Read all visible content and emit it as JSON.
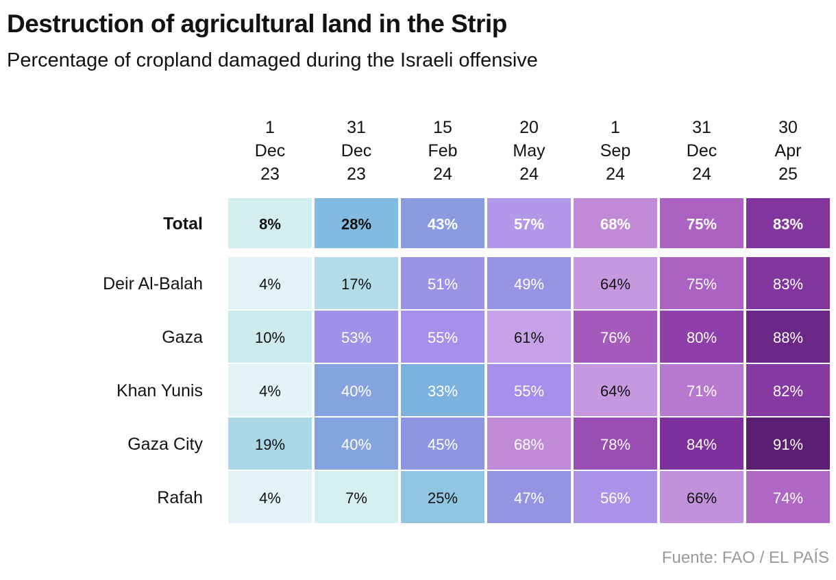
{
  "title": "Destruction of agricultural land in the Strip",
  "subtitle": "Percentage of cropland damaged during the Israeli offensive",
  "source": "Fuente: FAO / EL PAÍS",
  "chart_data": {
    "type": "heatmap",
    "title": "Destruction of agricultural land in the Strip",
    "subtitle": "Percentage of cropland damaged during the Israeli offensive",
    "columns": [
      [
        "1",
        "Dec",
        "23"
      ],
      [
        "31",
        "Dec",
        "23"
      ],
      [
        "15",
        "Feb",
        "24"
      ],
      [
        "20",
        "May",
        "24"
      ],
      [
        "1",
        "Sep",
        "24"
      ],
      [
        "31",
        "Dec",
        "24"
      ],
      [
        "30",
        "Apr",
        "25"
      ]
    ],
    "rows": [
      {
        "label": "Total",
        "bold": true,
        "values": [
          8,
          28,
          43,
          57,
          68,
          75,
          83
        ]
      },
      {
        "label": "Deir Al-Balah",
        "bold": false,
        "values": [
          4,
          17,
          51,
          49,
          64,
          75,
          83
        ]
      },
      {
        "label": "Gaza",
        "bold": false,
        "values": [
          10,
          53,
          55,
          61,
          76,
          80,
          88
        ]
      },
      {
        "label": "Khan Yunis",
        "bold": false,
        "values": [
          4,
          40,
          33,
          55,
          64,
          71,
          82
        ]
      },
      {
        "label": "Gaza City",
        "bold": false,
        "values": [
          19,
          40,
          45,
          68,
          78,
          84,
          91
        ]
      },
      {
        "label": "Rafah",
        "bold": false,
        "values": [
          4,
          7,
          25,
          47,
          56,
          66,
          74
        ]
      }
    ],
    "unit": "%",
    "value_range": [
      0,
      100
    ],
    "color_scale": [
      [
        0,
        "#f0f9fb"
      ],
      [
        10,
        "#cbebee"
      ],
      [
        20,
        "#a6d6e6"
      ],
      [
        28,
        "#82bbe1"
      ],
      [
        35,
        "#7ab0dd"
      ],
      [
        45,
        "#8f96e1"
      ],
      [
        55,
        "#a48fea"
      ],
      [
        60,
        "#c9a5ea"
      ],
      [
        68,
        "#c08ad6"
      ],
      [
        75,
        "#ab62c0"
      ],
      [
        80,
        "#8e3faa"
      ],
      [
        85,
        "#7a2e98"
      ],
      [
        91,
        "#5a1f73"
      ]
    ]
  }
}
